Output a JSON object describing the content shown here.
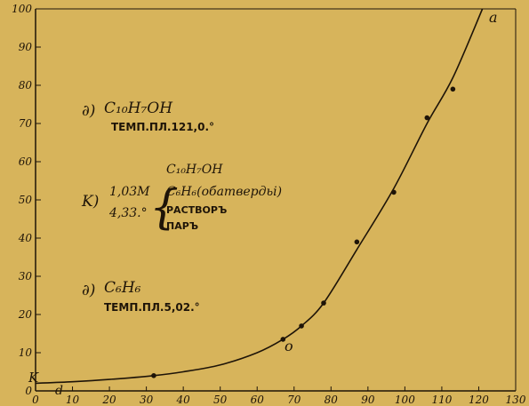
{
  "chart_data": {
    "type": "scatter",
    "xlim": [
      0,
      130
    ],
    "ylim": [
      0,
      100
    ],
    "x_ticks": [
      0,
      10,
      20,
      30,
      40,
      50,
      60,
      70,
      80,
      90,
      100,
      110,
      120,
      130
    ],
    "y_ticks": [
      0,
      10,
      20,
      30,
      40,
      50,
      60,
      70,
      80,
      90,
      100
    ],
    "x_tick_labels": [
      "0",
      "10",
      "20",
      "30",
      "40",
      "50",
      "60",
      "70",
      "80",
      "90",
      "100",
      "110",
      "120",
      "130"
    ],
    "y_tick_labels": [
      "0",
      "10",
      "20",
      "30",
      "40",
      "50",
      "60",
      "70",
      "80",
      "90",
      "100"
    ],
    "grid": false,
    "series": [
      {
        "points": [
          {
            "x": 32,
            "y": 4
          },
          {
            "x": 67,
            "y": 13.5
          },
          {
            "x": 72,
            "y": 17
          },
          {
            "x": 78,
            "y": 23
          },
          {
            "x": 87,
            "y": 39
          },
          {
            "x": 97,
            "y": 52
          },
          {
            "x": 106,
            "y": 71.5
          },
          {
            "x": 113,
            "y": 79
          }
        ],
        "curve": [
          {
            "x": 0,
            "y": 2
          },
          {
            "x": 10,
            "y": 2.4
          },
          {
            "x": 20,
            "y": 3
          },
          {
            "x": 32,
            "y": 4
          },
          {
            "x": 40,
            "y": 5
          },
          {
            "x": 50,
            "y": 6.8
          },
          {
            "x": 60,
            "y": 10
          },
          {
            "x": 67,
            "y": 13.5
          },
          {
            "x": 72,
            "y": 17
          },
          {
            "x": 78,
            "y": 23
          },
          {
            "x": 87,
            "y": 37
          },
          {
            "x": 97,
            "y": 53
          },
          {
            "x": 106,
            "y": 70
          },
          {
            "x": 113,
            "y": 82
          },
          {
            "x": 121,
            "y": 100
          }
        ]
      }
    ],
    "point_labels": {
      "k": "K",
      "d": "d",
      "o": "o",
      "a": "a"
    },
    "annotations": {
      "top": {
        "prefix": "∂)",
        "formula": "C₁₀H₇OH",
        "sub": "ТЕМП.ПЛ.121,0.°"
      },
      "mid": {
        "prefix": "K)",
        "left1": "1,03M",
        "left2": "4,33.°",
        "right1": "C₁₀H₇OH",
        "right2": "C₆H₆(обатвердьі)",
        "right3": "РАСТВОРЪ",
        "right4": "ПАРЪ"
      },
      "bottom": {
        "prefix": "∂)",
        "formula": "C₆H₆",
        "sub": "ТЕМП.ПЛ.5,02.°"
      }
    }
  }
}
